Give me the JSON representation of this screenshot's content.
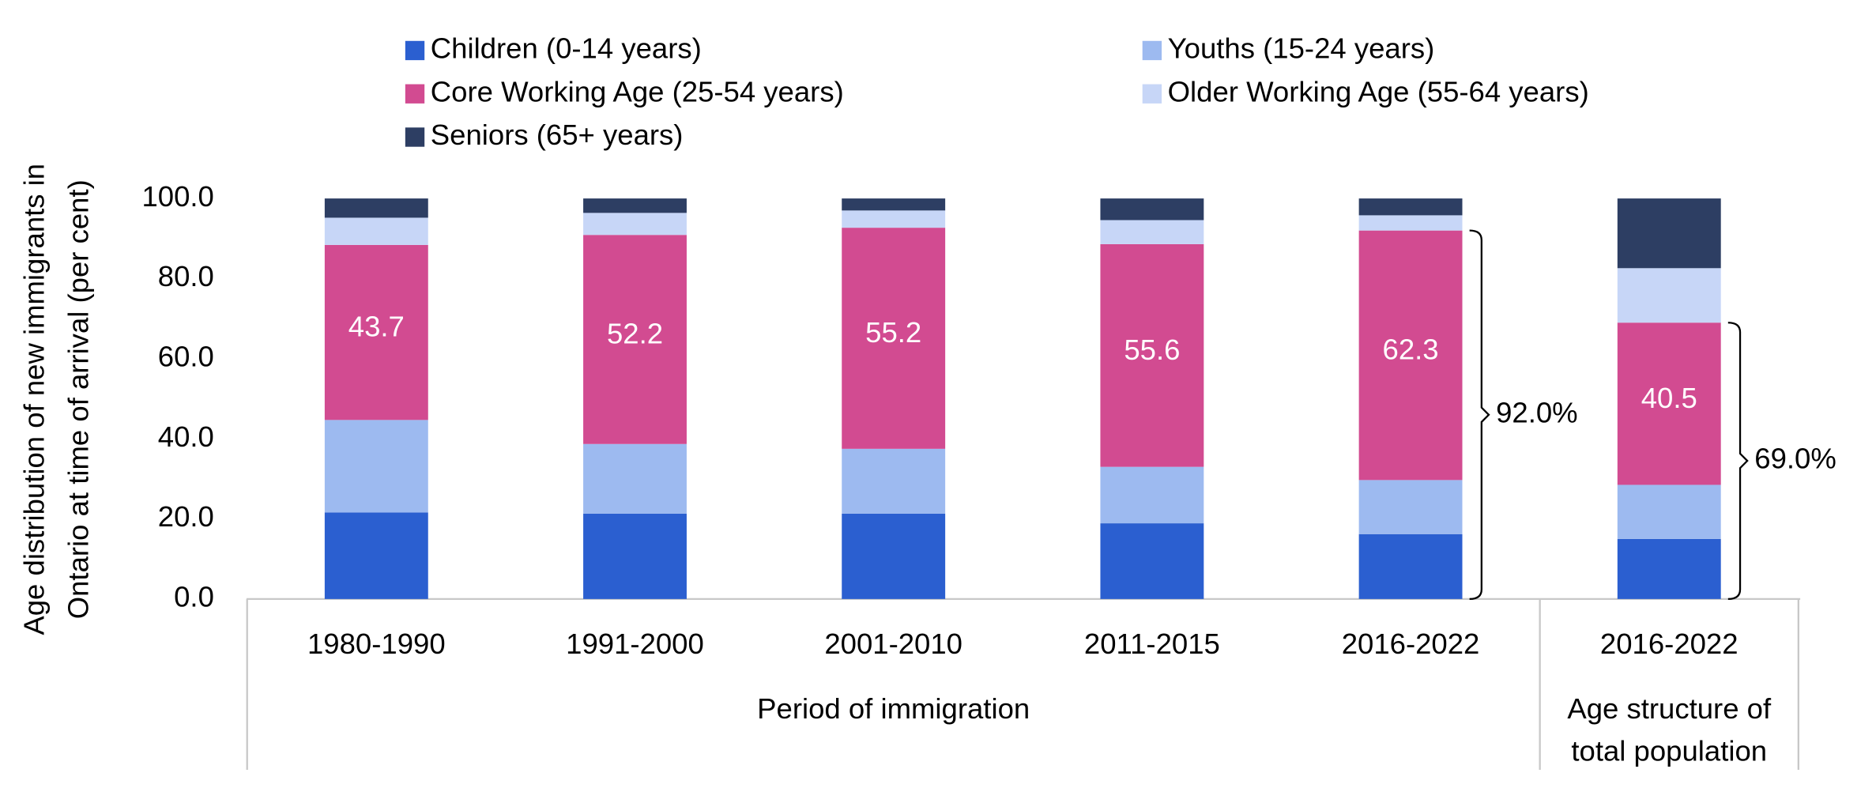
{
  "chart_data": {
    "type": "stacked_bar",
    "ylabel": [
      "Age distribution of new immigrants in",
      "Ontario at time of arrival (per cent)"
    ],
    "categories": [
      "1980-1990",
      "1991-2000",
      "2001-2010",
      "2011-2015",
      "2016-2022",
      "2016-2022"
    ],
    "groups": [
      {
        "label": [
          "Period of immigration"
        ],
        "span": [
          0,
          4
        ]
      },
      {
        "label": [
          "Age structure of",
          "total population"
        ],
        "span": [
          5,
          5
        ]
      }
    ],
    "series": [
      {
        "name": "Children (0-14 years)",
        "color": "#2b5fd0",
        "values": [
          21.6,
          21.3,
          21.3,
          18.9,
          16.2,
          15.0
        ]
      },
      {
        "name": "Youths (15-24 years)",
        "color": "#9dbaf0",
        "values": [
          23.1,
          17.4,
          16.2,
          14.1,
          13.5,
          13.5
        ]
      },
      {
        "name": "Core Working Age (25-54 years)",
        "color": "#d24b91",
        "values": [
          43.7,
          52.2,
          55.2,
          55.6,
          62.3,
          40.5
        ],
        "labels": true
      },
      {
        "name": "Older Working Age (55-64 years)",
        "color": "#c7d6f7",
        "values": [
          6.8,
          5.5,
          4.3,
          6.0,
          3.8,
          13.6
        ]
      },
      {
        "name": "Seniors (65+ years)",
        "color": "#2d3e63",
        "values": [
          4.8,
          3.6,
          3.0,
          5.4,
          4.2,
          17.4
        ]
      }
    ],
    "annotations": [
      {
        "text": "92.0%",
        "category": 4
      },
      {
        "text": "69.0%",
        "category": 5
      }
    ],
    "ylim": [
      0,
      100
    ],
    "yticks": [
      {
        "value": 0,
        "label": "0.0"
      },
      {
        "value": 20,
        "label": "20.0"
      },
      {
        "value": 40,
        "label": "40.0"
      },
      {
        "value": 60,
        "label": "60.0"
      },
      {
        "value": 80,
        "label": "80.0"
      },
      {
        "value": 100,
        "label": "100.0"
      }
    ]
  }
}
